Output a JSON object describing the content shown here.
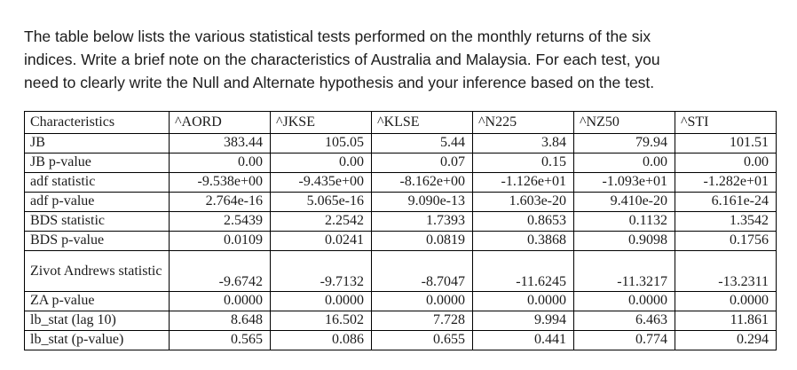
{
  "page": {
    "background_color": "#ffffff",
    "text_color": "#1c1c1c"
  },
  "intro": {
    "text": "The table below lists the various statistical tests performed on the monthly returns of the six indices. Write a brief note on the characteristics of Australia and Malaysia. For each test, you need to clearly write the Null and Alternate hypothesis and your inference based on the test.",
    "lines": [
      "The table below lists the various statistical tests performed on the monthly returns of the six",
      "indices. Write a brief note on the characteristics of Australia and Malaysia. For each test, you",
      "need to clearly write the Null and Alternate hypothesis and your inference based on the test."
    ]
  },
  "table": {
    "columns": [
      "Characteristics",
      "^AORD",
      "^JKSE",
      "^KLSE",
      "^N225",
      "^NZ50",
      "^STI"
    ],
    "rows": [
      {
        "label": "JB",
        "values": [
          "383.44",
          "105.05",
          "5.44",
          "3.84",
          "79.94",
          "101.51"
        ]
      },
      {
        "label": "JB p-value",
        "values": [
          "0.00",
          "0.00",
          "0.07",
          "0.15",
          "0.00",
          "0.00"
        ]
      },
      {
        "label": "adf statistic",
        "values": [
          "-9.538e+00",
          "-9.435e+00",
          "-8.162e+00",
          "-1.126e+01",
          "-1.093e+01",
          "-1.282e+01"
        ]
      },
      {
        "label": "adf p-value",
        "values": [
          "2.764e-16",
          "5.065e-16",
          "9.090e-13",
          "1.603e-20",
          "9.410e-20",
          "6.161e-24"
        ]
      },
      {
        "label": "BDS statistic",
        "values": [
          "2.5439",
          "2.2542",
          "1.7393",
          "0.8653",
          "0.1132",
          "1.3542"
        ]
      },
      {
        "label": "BDS p-value",
        "values": [
          "0.0109",
          "0.0241",
          "0.0819",
          "0.3868",
          "0.9098",
          "0.1756"
        ]
      },
      {
        "label": "Zivot Andrews statistic",
        "values": [
          "-9.6742",
          "-9.7132",
          "-8.7047",
          "-11.6245",
          "-11.3217",
          "-13.2311"
        ],
        "tall": true
      },
      {
        "label": "ZA p-value",
        "values": [
          "0.0000",
          "0.0000",
          "0.0000",
          "0.0000",
          "0.0000",
          "0.0000"
        ]
      },
      {
        "label": "lb_stat (lag 10)",
        "values": [
          "8.648",
          "16.502",
          "7.728",
          "9.994",
          "6.463",
          "11.861"
        ]
      },
      {
        "label": "lb_stat (p-value)",
        "values": [
          "0.565",
          "0.086",
          "0.655",
          "0.441",
          "0.774",
          "0.294"
        ]
      }
    ]
  }
}
